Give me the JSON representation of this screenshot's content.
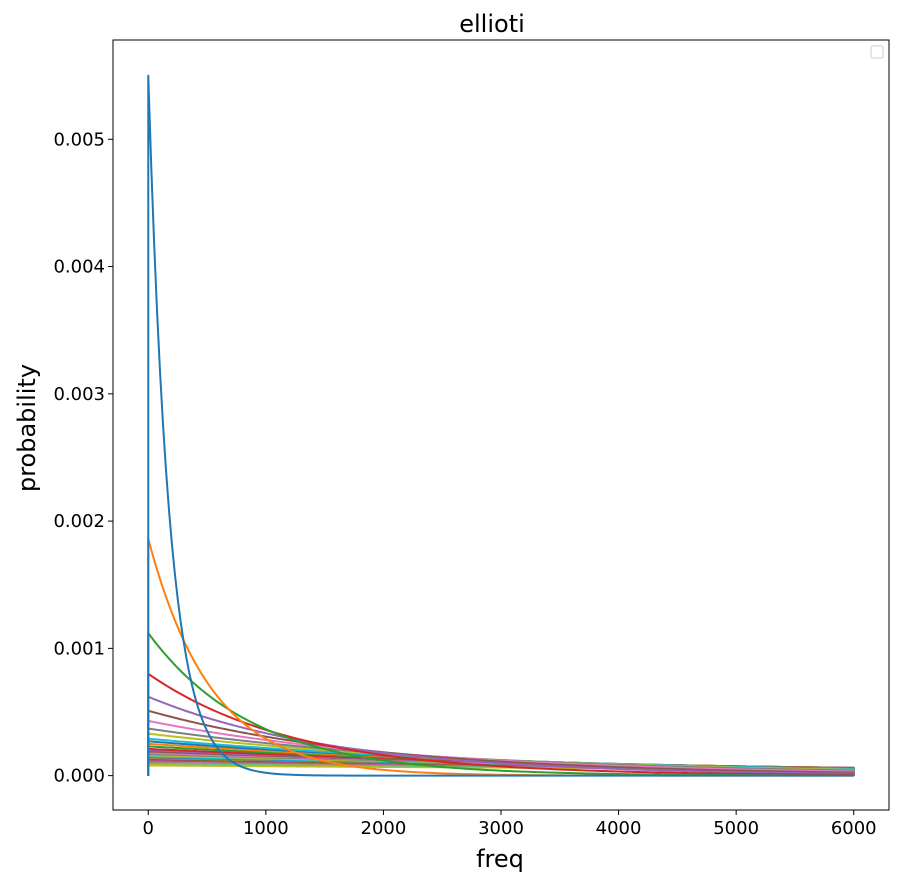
{
  "chart_data": {
    "type": "line",
    "title": "ellioti",
    "xlabel": "freq",
    "ylabel": "probability",
    "xlim": [
      -300,
      6300
    ],
    "ylim": [
      -0.00027,
      0.00578
    ],
    "xticks": [
      0,
      1000,
      2000,
      3000,
      4000,
      5000,
      6000
    ],
    "xtick_labels": [
      "0",
      "1000",
      "2000",
      "3000",
      "4000",
      "5000",
      "6000"
    ],
    "yticks": [
      0.0,
      0.001,
      0.002,
      0.003,
      0.004,
      0.005
    ],
    "ytick_labels": [
      "0.000",
      "0.001",
      "0.002",
      "0.003",
      "0.004",
      "0.005"
    ],
    "grid": false,
    "legend": "top-right (empty)",
    "x_max": 6000,
    "series": [
      {
        "color": "#1f77b4",
        "peak": 0.0055,
        "decay": 0.0055
      },
      {
        "color": "#ff7f0e",
        "peak": 0.00186,
        "decay": 0.00186
      },
      {
        "color": "#2ca02c",
        "peak": 0.00112,
        "decay": 0.00112
      },
      {
        "color": "#d62728",
        "peak": 0.0008,
        "decay": 0.0008
      },
      {
        "color": "#9467bd",
        "peak": 0.00062,
        "decay": 0.00062
      },
      {
        "color": "#8c564b",
        "peak": 0.00051,
        "decay": 0.00051
      },
      {
        "color": "#e377c2",
        "peak": 0.00043,
        "decay": 0.00043
      },
      {
        "color": "#7f7f7f",
        "peak": 0.00037,
        "decay": 0.00037
      },
      {
        "color": "#bcbd22",
        "peak": 0.00033,
        "decay": 0.00033
      },
      {
        "color": "#17becf",
        "peak": 0.00029,
        "decay": 0.00029
      },
      {
        "color": "#1f77b4",
        "peak": 0.00027,
        "decay": 0.00027
      },
      {
        "color": "#ff7f0e",
        "peak": 0.00025,
        "decay": 0.00025
      },
      {
        "color": "#2ca02c",
        "peak": 0.00023,
        "decay": 0.00023
      },
      {
        "color": "#d62728",
        "peak": 0.00021,
        "decay": 0.00021
      },
      {
        "color": "#9467bd",
        "peak": 0.0002,
        "decay": 0.0002
      },
      {
        "color": "#8c564b",
        "peak": 0.00019,
        "decay": 0.00019
      },
      {
        "color": "#e377c2",
        "peak": 0.00018,
        "decay": 0.00018
      },
      {
        "color": "#7f7f7f",
        "peak": 0.00017,
        "decay": 0.00017
      },
      {
        "color": "#bcbd22",
        "peak": 0.00016,
        "decay": 0.00016
      },
      {
        "color": "#17becf",
        "peak": 0.00015,
        "decay": 0.00015
      },
      {
        "color": "#1f77b4",
        "peak": 0.000145,
        "decay": 0.000145
      },
      {
        "color": "#ff7f0e",
        "peak": 0.00014,
        "decay": 0.00014
      },
      {
        "color": "#2ca02c",
        "peak": 0.000135,
        "decay": 0.000135
      },
      {
        "color": "#d62728",
        "peak": 0.00013,
        "decay": 0.00013
      },
      {
        "color": "#9467bd",
        "peak": 0.000125,
        "decay": 0.000125
      },
      {
        "color": "#8c564b",
        "peak": 0.00012,
        "decay": 0.00012
      },
      {
        "color": "#e377c2",
        "peak": 0.000115,
        "decay": 0.000115
      },
      {
        "color": "#7f7f7f",
        "peak": 0.00011,
        "decay": 0.00011
      },
      {
        "color": "#bcbd22",
        "peak": 0.000105,
        "decay": 0.000105
      },
      {
        "color": "#17becf",
        "peak": 0.0001,
        "decay": 0.0001
      },
      {
        "color": "#bcbd22",
        "peak": 9e-05,
        "decay": 9e-05
      },
      {
        "color": "#bcbd22",
        "peak": 8e-05,
        "decay": 8e-05
      }
    ]
  }
}
